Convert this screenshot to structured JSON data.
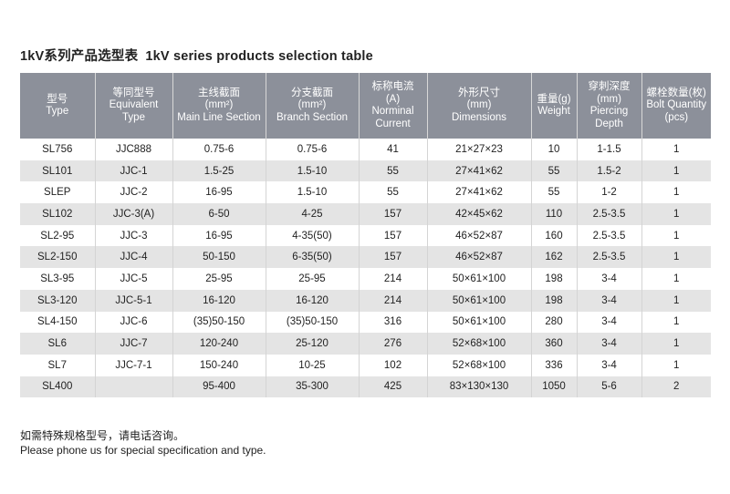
{
  "title": {
    "cn": "1kV系列产品选型表",
    "en": "1kV series products selection table"
  },
  "headers": [
    {
      "cn": "型号",
      "en": "Type"
    },
    {
      "cn": "等同型号",
      "en": "Equivalent Type"
    },
    {
      "cn": "主线截面",
      "unit": "(mm²)",
      "en": "Main Line Section"
    },
    {
      "cn": "分支截面",
      "unit": "(mm²)",
      "en": "Branch Section"
    },
    {
      "cn": "标称电流",
      "unit": "(A)",
      "en": "Norminal Current"
    },
    {
      "cn": "外形尺寸",
      "unit": "(mm)",
      "en": "Dimensions"
    },
    {
      "cn": "重量(g)",
      "en": "Weight"
    },
    {
      "cn": "穿刺深度",
      "unit": "(mm)",
      "en": "Piercing Depth"
    },
    {
      "cn": "螺栓数量(枚)",
      "en": "Bolt Quantity",
      "unit2": "(pcs)"
    }
  ],
  "rows": [
    [
      "SL756",
      "JJC888",
      "0.75-6",
      "0.75-6",
      "41",
      "21×27×23",
      "10",
      "1-1.5",
      "1"
    ],
    [
      "SL101",
      "JJC-1",
      "1.5-25",
      "1.5-10",
      "55",
      "27×41×62",
      "55",
      "1.5-2",
      "1"
    ],
    [
      "SLEP",
      "JJC-2",
      "16-95",
      "1.5-10",
      "55",
      "27×41×62",
      "55",
      "1-2",
      "1"
    ],
    [
      "SL102",
      "JJC-3(A)",
      "6-50",
      "4-25",
      "157",
      "42×45×62",
      "110",
      "2.5-3.5",
      "1"
    ],
    [
      "SL2-95",
      "JJC-3",
      "16-95",
      "4-35(50)",
      "157",
      "46×52×87",
      "160",
      "2.5-3.5",
      "1"
    ],
    [
      "SL2-150",
      "JJC-4",
      "50-150",
      "6-35(50)",
      "157",
      "46×52×87",
      "162",
      "2.5-3.5",
      "1"
    ],
    [
      "SL3-95",
      "JJC-5",
      "25-95",
      "25-95",
      "214",
      "50×61×100",
      "198",
      "3-4",
      "1"
    ],
    [
      "SL3-120",
      "JJC-5-1",
      "16-120",
      "16-120",
      "214",
      "50×61×100",
      "198",
      "3-4",
      "1"
    ],
    [
      "SL4-150",
      "JJC-6",
      "(35)50-150",
      "(35)50-150",
      "316",
      "50×61×100",
      "280",
      "3-4",
      "1"
    ],
    [
      "SL6",
      "JJC-7",
      "120-240",
      "25-120",
      "276",
      "52×68×100",
      "360",
      "3-4",
      "1"
    ],
    [
      "SL7",
      "JJC-7-1",
      "150-240",
      "10-25",
      "102",
      "52×68×100",
      "336",
      "3-4",
      "1"
    ],
    [
      "SL400",
      "",
      "95-400",
      "35-300",
      "425",
      "83×130×130",
      "1050",
      "5-6",
      "2"
    ]
  ],
  "footnote": {
    "cn": "如需特殊规格型号，请电话咨询。",
    "en": "Please phone us for special specification and type."
  }
}
